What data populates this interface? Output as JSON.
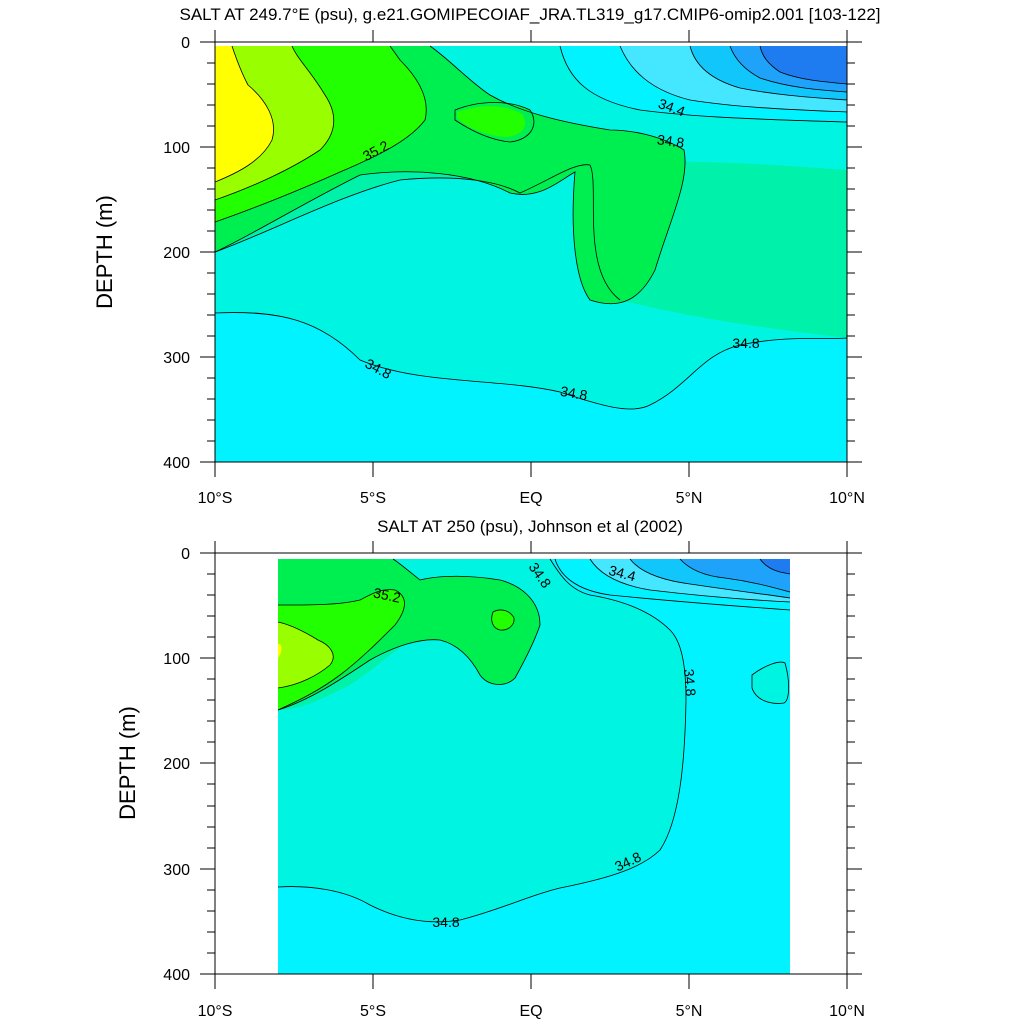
{
  "colors": {
    "c33_6": "#1E7BF0",
    "c34_0": "#1FA2FA",
    "c34_2": "#10C6FB",
    "c34_4": "#45E6FF",
    "c34_6": "#00F3FF",
    "c34_8": "#00F4E2",
    "c35_0": "#00F2AA",
    "c35_2": "#00EF50",
    "c35_4": "#22FF00",
    "c35_6": "#99FF00",
    "c35_8": "#FFFF00",
    "c36_0": "#FFC800"
  },
  "chart_data": [
    {
      "type": "contour",
      "title": "SALT AT 249.7°E (psu), g.e21.GOMIPECOIAF_JRA.TL319_g17.CMIP6-omip2.001 [103-122]",
      "xlabel": "",
      "ylabel": "DEPTH (m)",
      "xlim": [
        -10,
        10
      ],
      "ylim": [
        400,
        0
      ],
      "x_ticks": [
        -10,
        -5,
        0,
        5,
        10
      ],
      "x_tick_labels": [
        "10°S",
        "5°S",
        "EQ",
        "5°N",
        "10°N"
      ],
      "y_ticks": [
        0,
        100,
        200,
        300,
        400
      ],
      "y_tick_labels": [
        "0",
        "100",
        "200",
        "300",
        "400"
      ],
      "contour_interval": 0.2,
      "contour_labels": [
        "34.4",
        "34.8",
        "35.2",
        "34.8",
        "34.8",
        "34.8"
      ]
    },
    {
      "type": "contour",
      "title": "SALT AT 250 (psu), Johnson et al (2002)",
      "xlabel": "",
      "ylabel": "DEPTH (m)",
      "xlim": [
        -10,
        10
      ],
      "ylim": [
        400,
        0
      ],
      "data_xrange": [
        -8,
        8.2
      ],
      "x_ticks": [
        -10,
        -5,
        0,
        5,
        10
      ],
      "x_tick_labels": [
        "10°S",
        "5°S",
        "EQ",
        "5°N",
        "10°N"
      ],
      "y_ticks": [
        0,
        100,
        200,
        300,
        400
      ],
      "y_tick_labels": [
        "0",
        "100",
        "200",
        "300",
        "400"
      ],
      "contour_interval": 0.2,
      "contour_labels": [
        "34.8",
        "34.4",
        "35.2",
        "34.8",
        "34.8",
        "34.8"
      ]
    }
  ]
}
